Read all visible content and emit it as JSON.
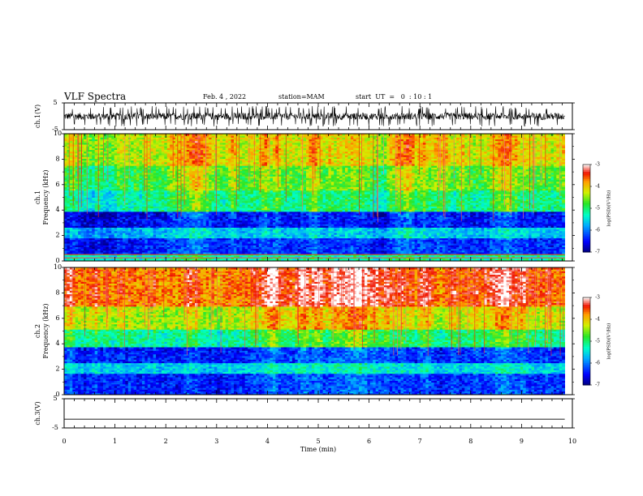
{
  "header": {
    "title": "VLF Spectra",
    "date": "Feb. 4 , 2022",
    "station": "station=MAM",
    "start": "start  UT  =   0  : 10 : 1"
  },
  "chart_data": [
    {
      "type": "line",
      "panel": "ch1-waveform",
      "ylabel": "ch.1(V)",
      "ylim": [
        -5,
        5
      ],
      "ytick_labels": [
        "5",
        "-5"
      ],
      "xlim": [
        0,
        10
      ],
      "trace": "dense broadband waveform spanning roughly -3 to +3 V over 0 to 9.85 min"
    },
    {
      "type": "heatmap",
      "panel": "ch1-spectrogram",
      "ylabel": [
        "ch.1",
        "Frequency (kHz)"
      ],
      "ylim": [
        0,
        10
      ],
      "ytick_labels": [
        "0",
        "2",
        "4",
        "6",
        "8",
        "10"
      ],
      "xlim": [
        0,
        10
      ],
      "data_xmax": 9.85,
      "colorbar": {
        "label": "log(PSD)(V²/Hz)",
        "range": [
          -7,
          -3
        ],
        "tick_labels": [
          "-3",
          "-4",
          "-5",
          "-6",
          "-7"
        ]
      },
      "bands": [
        {
          "fmin": 0.0,
          "fmax": 0.6,
          "level": -5.2
        },
        {
          "fmin": 0.6,
          "fmax": 1.8,
          "level": -6.3
        },
        {
          "fmin": 1.8,
          "fmax": 2.6,
          "level": -5.6
        },
        {
          "fmin": 2.6,
          "fmax": 3.9,
          "level": -6.4
        },
        {
          "fmin": 3.9,
          "fmax": 5.6,
          "level": -5.0
        },
        {
          "fmin": 5.6,
          "fmax": 7.5,
          "level": -4.6
        },
        {
          "fmin": 7.5,
          "fmax": 10.0,
          "level": -4.1
        }
      ],
      "lines": [
        {
          "f": 0.25,
          "level": -3.3
        },
        {
          "f": 0.5,
          "level": -3.5
        }
      ]
    },
    {
      "type": "heatmap",
      "panel": "ch2-spectrogram",
      "ylabel": [
        "ch.2",
        "Frequency (kHz)"
      ],
      "ylim": [
        0,
        10
      ],
      "ytick_labels": [
        "0",
        "2",
        "4",
        "6",
        "8",
        "10"
      ],
      "xlim": [
        0,
        10
      ],
      "data_xmax": 9.85,
      "colorbar": {
        "label": "log(PSD)(V²/Hz)",
        "range": [
          -7,
          -3
        ],
        "tick_labels": [
          "-3",
          "-4",
          "-5",
          "-6",
          "-7"
        ]
      },
      "bands": [
        {
          "fmin": 0.0,
          "fmax": 1.7,
          "level": -6.3
        },
        {
          "fmin": 1.7,
          "fmax": 2.5,
          "level": -5.5
        },
        {
          "fmin": 2.5,
          "fmax": 3.8,
          "level": -6.3
        },
        {
          "fmin": 3.8,
          "fmax": 5.2,
          "level": -5.0
        },
        {
          "fmin": 5.2,
          "fmax": 7.0,
          "level": -4.2
        },
        {
          "fmin": 7.0,
          "fmax": 10.0,
          "level": -3.5
        }
      ],
      "lines": []
    },
    {
      "type": "line",
      "panel": "ch3-waveform",
      "ylabel": "ch.3(V)",
      "ylim": [
        -5,
        5
      ],
      "ytick_labels": [
        "5",
        "-5"
      ],
      "xlim": [
        0,
        10
      ],
      "x": [
        0,
        9.85
      ],
      "y": [
        -2.0,
        -2.0
      ],
      "xlabel": "Time (min)",
      "xtick_labels": [
        "0",
        "1",
        "2",
        "3",
        "4",
        "5",
        "6",
        "7",
        "8",
        "9",
        "10"
      ]
    }
  ]
}
